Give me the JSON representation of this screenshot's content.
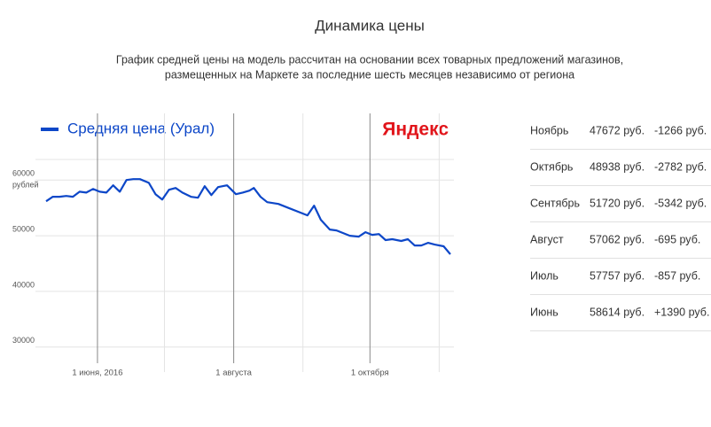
{
  "chart_data": {
    "type": "line",
    "title": "Динамика цены",
    "subtitle": [
      "График средней цены на модель рассчитан на основании всех товарных предложений магазинов,",
      "размещенных на Маркете за последние шесть месяцев независимо от региона"
    ],
    "brand": "Яндекс",
    "ylabel": "рублей",
    "x": [
      "2016-05-09",
      "2016-05-12",
      "2016-05-15",
      "2016-05-18",
      "2016-05-21",
      "2016-05-24",
      "2016-05-27",
      "2016-05-30",
      "2016-06-02",
      "2016-06-05",
      "2016-06-08",
      "2016-06-11",
      "2016-06-14",
      "2016-06-17",
      "2016-06-20",
      "2016-06-24",
      "2016-06-27",
      "2016-06-30",
      "2016-07-03",
      "2016-07-06",
      "2016-07-09",
      "2016-07-13",
      "2016-07-16",
      "2016-07-19",
      "2016-07-22",
      "2016-07-25",
      "2016-07-29",
      "2016-08-02",
      "2016-08-05",
      "2016-08-08",
      "2016-08-10",
      "2016-08-13",
      "2016-08-16",
      "2016-08-21",
      "2016-08-26",
      "2016-08-31",
      "2016-09-03",
      "2016-09-06",
      "2016-09-09",
      "2016-09-13",
      "2016-09-16",
      "2016-09-19",
      "2016-09-22",
      "2016-09-26",
      "2016-09-29",
      "2016-10-02",
      "2016-10-05",
      "2016-10-08",
      "2016-10-11",
      "2016-10-15",
      "2016-10-18",
      "2016-10-21",
      "2016-10-24",
      "2016-10-27",
      "2016-10-30",
      "2016-11-03",
      "2016-11-06"
    ],
    "series": [
      {
        "name": "Средняя цена (Урал)",
        "color": "#0d47c8",
        "values": [
          56190,
          57000,
          57000,
          57140,
          57000,
          57900,
          57750,
          58400,
          57900,
          57750,
          59050,
          57900,
          60000,
          60160,
          60160,
          59500,
          57460,
          56500,
          58250,
          58570,
          57750,
          56980,
          56830,
          58890,
          57300,
          58730,
          59050,
          57460,
          57750,
          58100,
          58570,
          56980,
          56030,
          55710,
          54920,
          54130,
          53650,
          55400,
          52860,
          51110,
          50950,
          50480,
          50000,
          49840,
          50630,
          50160,
          50300,
          49210,
          49370,
          49050,
          49370,
          48250,
          48250,
          48730,
          48400,
          48100,
          46670
        ]
      }
    ],
    "xlim": [
      "2016-05-09",
      "2016-11-06"
    ],
    "xticks": [
      {
        "value": "2016-06-01",
        "label": "1 июня, 2016"
      },
      {
        "value": "2016-08-01",
        "label": "1 августа"
      },
      {
        "value": "2016-10-01",
        "label": "1 октября"
      }
    ],
    "xminor": [
      "2016-07-01",
      "2016-09-01",
      "2016-11-01"
    ],
    "ylim": [
      25500,
      63700
    ],
    "yticks": [
      30000,
      40000,
      50000,
      60000
    ],
    "grid": true
  },
  "table": {
    "rows": [
      [
        "Ноябрь",
        "47672 руб.",
        "-1266 руб."
      ],
      [
        "Октябрь",
        "48938 руб.",
        "-2782 руб."
      ],
      [
        "Сентябрь",
        "51720 руб.",
        "-5342 руб."
      ],
      [
        "Август",
        "57062 руб.",
        "-695 руб."
      ],
      [
        "Июль",
        "57757 руб.",
        "-857 руб."
      ],
      [
        "Июнь",
        "58614 руб.",
        "+1390 руб."
      ]
    ]
  }
}
